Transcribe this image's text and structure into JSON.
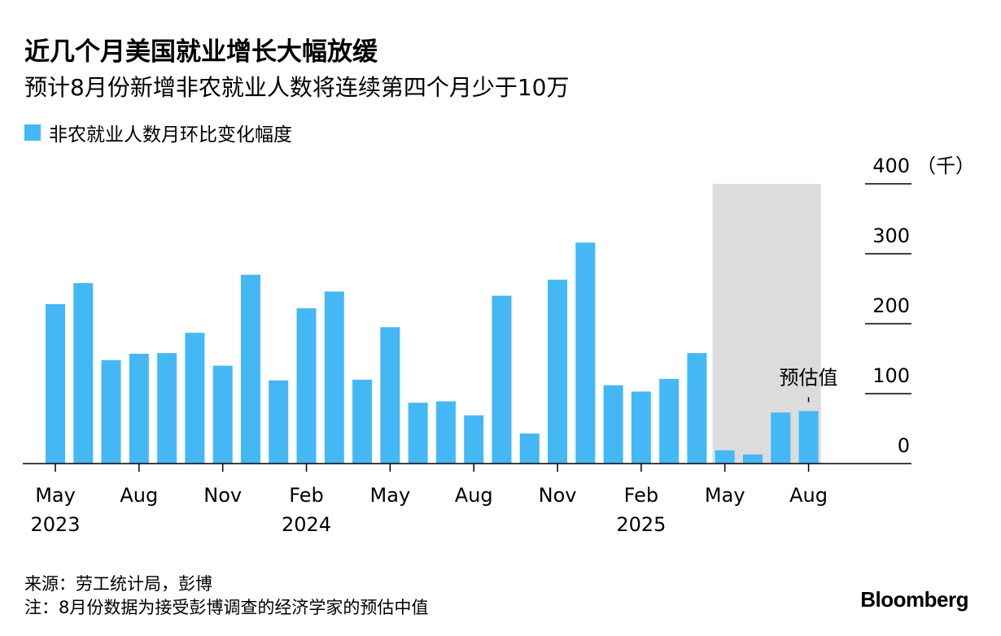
{
  "title": "近几个月美国就业增长大幅放缓",
  "subtitle": "预计8月份新增非农就业人数将连续第四个月少于10万",
  "legend": {
    "label": "非农就业人数月环比变化幅度",
    "color": "#44b8f5"
  },
  "source": "来源：劳工统计局，彭博",
  "note": "注：8月份数据为接受彭博调查的经济学家的预估中值",
  "brand": "Bloomberg",
  "annotation": "预估值",
  "chart_data": {
    "type": "bar",
    "unit_label": "（千）",
    "ylim": [
      0,
      400
    ],
    "yticks": [
      0,
      100,
      200,
      300,
      400
    ],
    "grid": false,
    "categories": [
      "2023-05",
      "2023-06",
      "2023-07",
      "2023-08",
      "2023-09",
      "2023-10",
      "2023-11",
      "2023-12",
      "2024-01",
      "2024-02",
      "2024-03",
      "2024-04",
      "2024-05",
      "2024-06",
      "2024-07",
      "2024-08",
      "2024-09",
      "2024-10",
      "2024-11",
      "2024-12",
      "2025-01",
      "2025-02",
      "2025-03",
      "2025-04",
      "2025-05",
      "2025-06",
      "2025-07",
      "2025-08"
    ],
    "values": [
      228,
      258,
      148,
      157,
      158,
      187,
      140,
      270,
      119,
      222,
      246,
      120,
      195,
      87,
      89,
      69,
      240,
      43,
      263,
      316,
      112,
      103,
      121,
      158,
      19,
      13,
      73,
      75
    ],
    "xticks": [
      {
        "index": 0,
        "label": "May",
        "year": "2023"
      },
      {
        "index": 3,
        "label": "Aug",
        "year": ""
      },
      {
        "index": 6,
        "label": "Nov",
        "year": ""
      },
      {
        "index": 9,
        "label": "Feb",
        "year": "2024"
      },
      {
        "index": 12,
        "label": "May",
        "year": ""
      },
      {
        "index": 15,
        "label": "Aug",
        "year": ""
      },
      {
        "index": 18,
        "label": "Nov",
        "year": ""
      },
      {
        "index": 21,
        "label": "Feb",
        "year": "2025"
      },
      {
        "index": 24,
        "label": "May",
        "year": ""
      },
      {
        "index": 27,
        "label": "Aug",
        "year": ""
      }
    ],
    "highlight_range": [
      24,
      27
    ],
    "highlight_color": "#dcdcdc",
    "annotated_index": 27
  }
}
